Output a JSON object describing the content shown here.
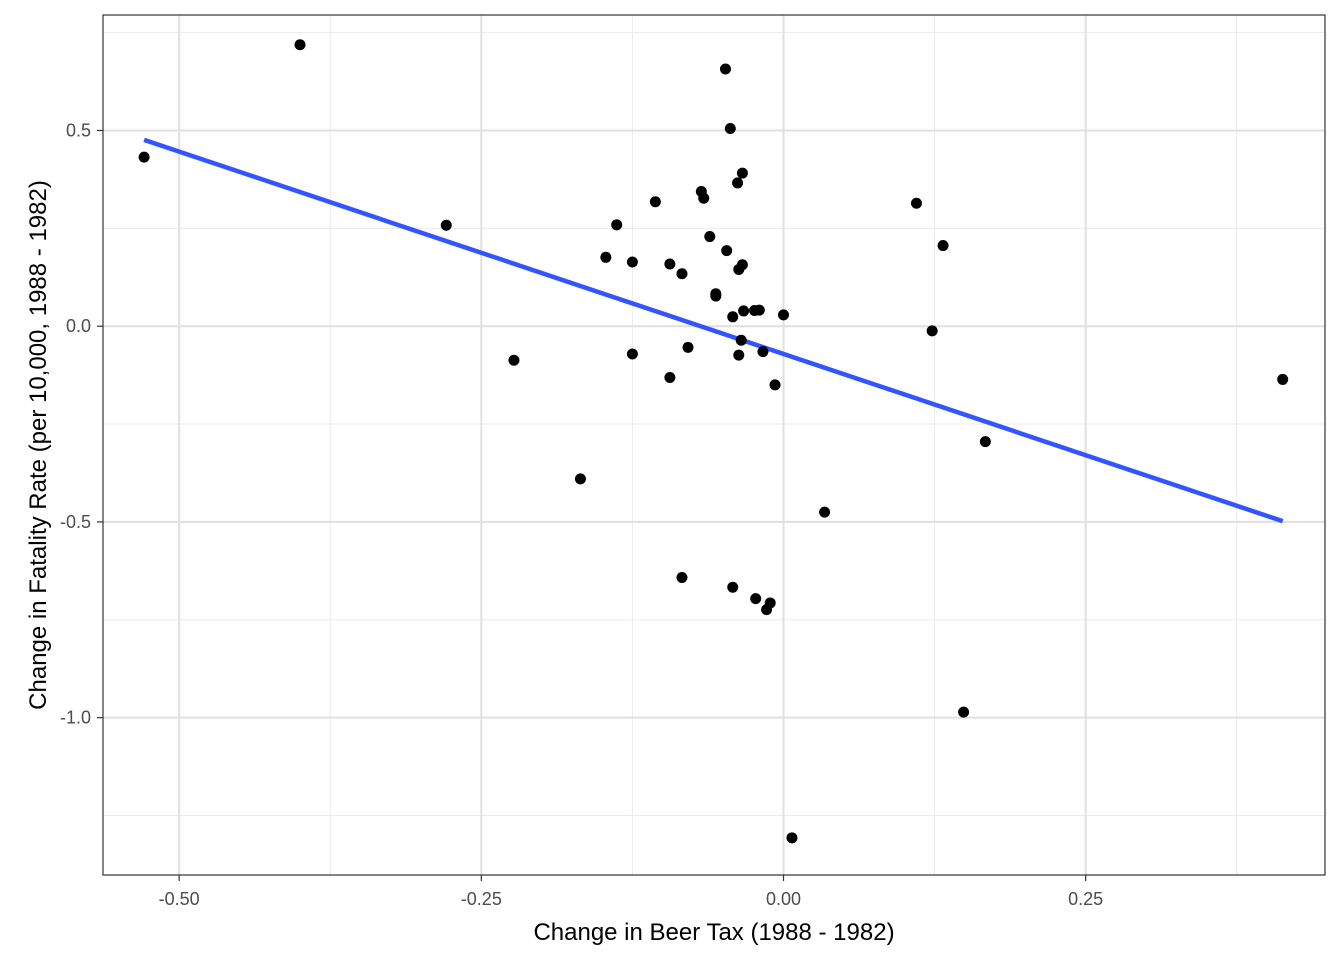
{
  "chart_data": {
    "type": "scatter",
    "title": "",
    "xlabel": "Change in Beer Tax (1988 - 1982)",
    "ylabel": "Change in Fatality Rate (per 10,000, 1988 - 1982)",
    "xlim": [
      -0.563,
      0.448
    ],
    "ylim": [
      -1.402,
      0.795
    ],
    "x_ticks": [
      -0.5,
      -0.25,
      0.0,
      0.25
    ],
    "x_tick_labels": [
      "-0.50",
      "-0.25",
      "0.00",
      "0.25"
    ],
    "y_ticks": [
      -1.0,
      -0.5,
      0.0,
      0.5
    ],
    "y_tick_labels": [
      "-1.0",
      "-0.5",
      "0.0",
      "0.5"
    ],
    "grid": true,
    "series": [
      {
        "kind": "points",
        "color": "#000000",
        "points": [
          {
            "x": -0.529,
            "y": 0.432
          },
          {
            "x": -0.4,
            "y": 0.719
          },
          {
            "x": -0.279,
            "y": 0.258
          },
          {
            "x": -0.223,
            "y": -0.087
          },
          {
            "x": -0.168,
            "y": -0.39
          },
          {
            "x": -0.147,
            "y": 0.176
          },
          {
            "x": -0.138,
            "y": 0.259
          },
          {
            "x": -0.125,
            "y": 0.164
          },
          {
            "x": -0.125,
            "y": -0.071
          },
          {
            "x": -0.106,
            "y": 0.318
          },
          {
            "x": -0.094,
            "y": 0.159
          },
          {
            "x": -0.094,
            "y": -0.131
          },
          {
            "x": -0.084,
            "y": 0.134
          },
          {
            "x": -0.084,
            "y": -0.642
          },
          {
            "x": -0.079,
            "y": -0.054
          },
          {
            "x": -0.068,
            "y": 0.344
          },
          {
            "x": -0.066,
            "y": 0.327
          },
          {
            "x": -0.061,
            "y": 0.229
          },
          {
            "x": -0.056,
            "y": 0.083
          },
          {
            "x": -0.056,
            "y": 0.077
          },
          {
            "x": -0.048,
            "y": 0.657
          },
          {
            "x": -0.047,
            "y": 0.193
          },
          {
            "x": -0.044,
            "y": 0.505
          },
          {
            "x": -0.042,
            "y": 0.024
          },
          {
            "x": -0.042,
            "y": -0.667
          },
          {
            "x": -0.038,
            "y": 0.366
          },
          {
            "x": -0.037,
            "y": 0.145
          },
          {
            "x": -0.037,
            "y": -0.074
          },
          {
            "x": -0.035,
            "y": -0.036
          },
          {
            "x": -0.034,
            "y": 0.157
          },
          {
            "x": -0.034,
            "y": 0.391
          },
          {
            "x": -0.033,
            "y": 0.039
          },
          {
            "x": -0.024,
            "y": 0.04
          },
          {
            "x": -0.023,
            "y": -0.696
          },
          {
            "x": -0.02,
            "y": 0.041
          },
          {
            "x": -0.017,
            "y": -0.065
          },
          {
            "x": -0.014,
            "y": -0.724
          },
          {
            "x": -0.011,
            "y": -0.707
          },
          {
            "x": -0.007,
            "y": -0.15
          },
          {
            "x": 0.0,
            "y": 0.029
          },
          {
            "x": 0.007,
            "y": -1.307
          },
          {
            "x": 0.034,
            "y": -0.475
          },
          {
            "x": 0.11,
            "y": 0.314
          },
          {
            "x": 0.123,
            "y": -0.012
          },
          {
            "x": 0.132,
            "y": 0.206
          },
          {
            "x": 0.149,
            "y": -0.986
          },
          {
            "x": 0.167,
            "y": -0.295
          },
          {
            "x": 0.413,
            "y": -0.136
          }
        ]
      },
      {
        "kind": "fit-line",
        "color": "#3355ff",
        "points": [
          {
            "x": -0.529,
            "y": 0.476
          },
          {
            "x": 0.413,
            "y": -0.498
          }
        ]
      }
    ]
  }
}
